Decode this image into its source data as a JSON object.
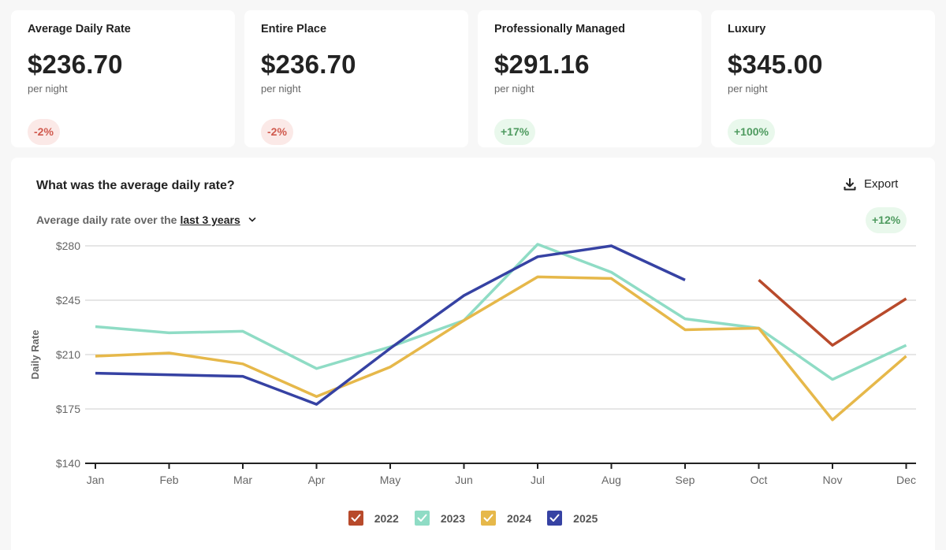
{
  "kpis": [
    {
      "title": "Average Daily Rate",
      "value": "$236.70",
      "unit": "per night",
      "change": "-2%",
      "trend": "negative"
    },
    {
      "title": "Entire Place",
      "value": "$236.70",
      "unit": "per night",
      "change": "-2%",
      "trend": "negative"
    },
    {
      "title": "Professionally Managed",
      "value": "$291.16",
      "unit": "per night",
      "change": "+17%",
      "trend": "positive"
    },
    {
      "title": "Luxury",
      "value": "$345.00",
      "unit": "per night",
      "change": "+100%",
      "trend": "positive"
    }
  ],
  "chart_card": {
    "title": "What was the average daily rate?",
    "export_label": "Export",
    "export_icon": "download-icon",
    "subtitle_prefix": "Average daily rate over the",
    "subtitle_period": "last 3 years",
    "dropdown_icon": "chevron-down-icon",
    "change_badge": "+12%"
  },
  "chart_data": {
    "type": "line",
    "title": "What was the average daily rate?",
    "xlabel": "",
    "ylabel": "Daily Rate",
    "ylim": [
      140,
      280
    ],
    "yticks": [
      140,
      175,
      210,
      245,
      280
    ],
    "ytick_labels": [
      "$140",
      "$175",
      "$210",
      "$245",
      "$280"
    ],
    "grid": true,
    "legend_position": "bottom-center",
    "categories": [
      "Jan",
      "Feb",
      "Mar",
      "Apr",
      "May",
      "Jun",
      "Jul",
      "Aug",
      "Sep",
      "Oct",
      "Nov",
      "Dec"
    ],
    "series": [
      {
        "name": "2022",
        "color": "#b84a2b",
        "values": [
          null,
          null,
          null,
          null,
          null,
          null,
          null,
          null,
          null,
          258,
          216,
          246
        ]
      },
      {
        "name": "2023",
        "color": "#8fdcc5",
        "values": [
          228,
          224,
          225,
          201,
          215,
          232,
          281,
          263,
          233,
          227,
          194,
          216
        ]
      },
      {
        "name": "2024",
        "color": "#e6b84a",
        "values": [
          209,
          211,
          204,
          183,
          202,
          232,
          260,
          259,
          226,
          227,
          168,
          209
        ]
      },
      {
        "name": "2025",
        "color": "#3642a3",
        "values": [
          198,
          197,
          196,
          178,
          214,
          248,
          273,
          280,
          258,
          null,
          null,
          null
        ]
      }
    ]
  }
}
